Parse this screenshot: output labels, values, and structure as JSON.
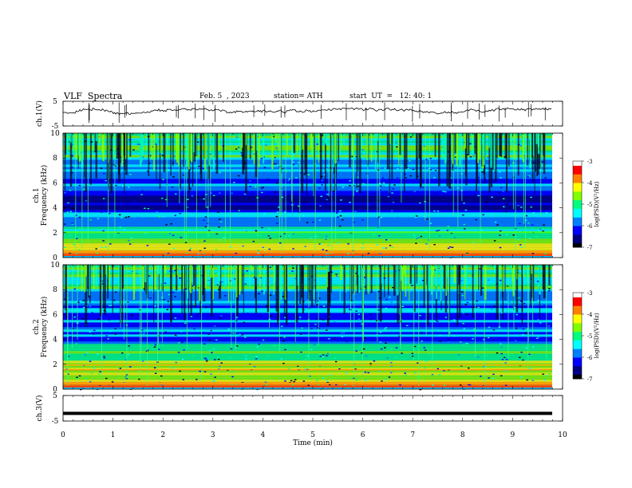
{
  "header": {
    "title": "VLF  Spectra",
    "date": "Feb. 5  , 2023",
    "station": "station= ATH",
    "start_ut": "start  UT  =   12: 40: 1"
  },
  "chart_data": [
    {
      "type": "line",
      "panel": "ch1-voltage",
      "ylabel": "ch.1(V)",
      "ylim": [
        -5,
        5
      ],
      "yticks": [
        "5",
        "-5"
      ],
      "series": [
        {
          "values": [
            1.2,
            0.8,
            1.0,
            1.4,
            0.9,
            1.1,
            1.3,
            0.7,
            1.0,
            1.2,
            0.9,
            1.1,
            1.4,
            1.0,
            0.8,
            1.2
          ]
        }
      ]
    },
    {
      "type": "heatmap",
      "panel": "ch1-spectrogram",
      "ylabel": "ch.1\nFrequency (kHz)",
      "ylim": [
        0,
        10
      ],
      "yticks": [
        "0",
        "2",
        "4",
        "6",
        "8",
        "10"
      ],
      "colorbar": {
        "label": "log(PSD)(V²/Hz)",
        "ticks": [
          "-3",
          "-4",
          "-5",
          "-6",
          "-7"
        ],
        "range": [
          -7,
          -3
        ]
      }
    },
    {
      "type": "heatmap",
      "panel": "ch2-spectrogram",
      "ylabel": "ch.2\nFrequency (kHz)",
      "ylim": [
        0,
        10
      ],
      "yticks": [
        "0",
        "2",
        "4",
        "6",
        "8",
        "10"
      ],
      "colorbar": {
        "label": "log(PSD)(V²/Hz)",
        "ticks": [
          "-3",
          "-4",
          "-5",
          "-6",
          "-7"
        ],
        "range": [
          -7,
          -3
        ]
      }
    },
    {
      "type": "line",
      "panel": "ch3-voltage",
      "ylabel": "ch.3(V)",
      "ylim": [
        -5,
        5
      ],
      "yticks": [
        "5",
        "-5"
      ],
      "series": [
        {
          "values": [
            -2,
            -2,
            -2,
            -2,
            -2,
            -2,
            -2,
            -2
          ]
        }
      ]
    }
  ],
  "x_axis": {
    "label": "Time  (min)",
    "range": [
      0,
      10
    ],
    "ticks": [
      "0",
      "1",
      "2",
      "3",
      "4",
      "5",
      "6",
      "7",
      "8",
      "9",
      "10"
    ]
  },
  "colors": {
    "background": "#ffffff",
    "axis": "#000000",
    "colormap": [
      "#000000",
      "#000080",
      "#0000ff",
      "#0080ff",
      "#00ffff",
      "#00ff80",
      "#80ff00",
      "#ffff00",
      "#ff8000",
      "#ff0000",
      "#ffffff"
    ]
  }
}
